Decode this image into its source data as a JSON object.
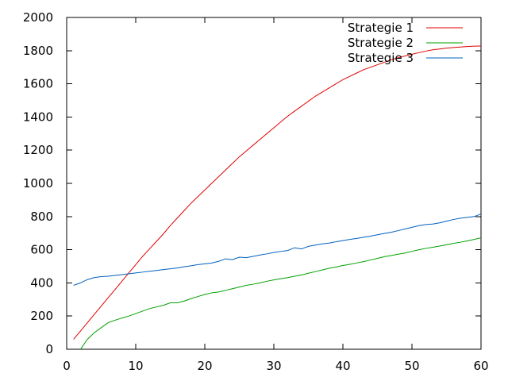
{
  "chart_data": {
    "type": "line",
    "title": "",
    "xlabel": "",
    "ylabel": "",
    "xlim": [
      0,
      60
    ],
    "ylim": [
      0,
      2000
    ],
    "x_ticks": [
      0,
      10,
      20,
      30,
      40,
      50,
      60
    ],
    "y_ticks": [
      0,
      200,
      400,
      600,
      800,
      1000,
      1200,
      1400,
      1600,
      1800,
      2000
    ],
    "grid": false,
    "legend_position": "top-right",
    "series": [
      {
        "name": "Strategie 1",
        "color": "#e00000",
        "points": [
          [
            1,
            60
          ],
          [
            2,
            110
          ],
          [
            3,
            160
          ],
          [
            4,
            210
          ],
          [
            5,
            260
          ],
          [
            6,
            310
          ],
          [
            7,
            360
          ],
          [
            8,
            410
          ],
          [
            9,
            460
          ],
          [
            10,
            510
          ],
          [
            11,
            560
          ],
          [
            12,
            605
          ],
          [
            13,
            650
          ],
          [
            14,
            695
          ],
          [
            15,
            745
          ],
          [
            16,
            790
          ],
          [
            17,
            835
          ],
          [
            18,
            880
          ],
          [
            19,
            920
          ],
          [
            20,
            960
          ],
          [
            21,
            1000
          ],
          [
            22,
            1040
          ],
          [
            23,
            1080
          ],
          [
            24,
            1120
          ],
          [
            25,
            1160
          ],
          [
            26,
            1195
          ],
          [
            27,
            1230
          ],
          [
            28,
            1265
          ],
          [
            29,
            1300
          ],
          [
            30,
            1335
          ],
          [
            31,
            1370
          ],
          [
            32,
            1405
          ],
          [
            33,
            1435
          ],
          [
            34,
            1465
          ],
          [
            35,
            1495
          ],
          [
            36,
            1525
          ],
          [
            37,
            1550
          ],
          [
            38,
            1575
          ],
          [
            39,
            1600
          ],
          [
            40,
            1625
          ],
          [
            41,
            1645
          ],
          [
            42,
            1665
          ],
          [
            43,
            1685
          ],
          [
            44,
            1700
          ],
          [
            45,
            1715
          ],
          [
            46,
            1730
          ],
          [
            47,
            1745
          ],
          [
            48,
            1757
          ],
          [
            49,
            1768
          ],
          [
            50,
            1778
          ],
          [
            51,
            1788
          ],
          [
            52,
            1797
          ],
          [
            53,
            1805
          ],
          [
            54,
            1810
          ],
          [
            55,
            1815
          ],
          [
            56,
            1819
          ],
          [
            57,
            1822
          ],
          [
            58,
            1825
          ],
          [
            59,
            1827
          ],
          [
            60,
            1828
          ]
        ]
      },
      {
        "name": "Strategie 2",
        "color": "#00a000",
        "points": [
          [
            2,
            0
          ],
          [
            3,
            60
          ],
          [
            4,
            100
          ],
          [
            5,
            130
          ],
          [
            6,
            160
          ],
          [
            7,
            175
          ],
          [
            8,
            188
          ],
          [
            9,
            200
          ],
          [
            10,
            215
          ],
          [
            11,
            230
          ],
          [
            12,
            245
          ],
          [
            13,
            255
          ],
          [
            14,
            265
          ],
          [
            15,
            280
          ],
          [
            16,
            280
          ],
          [
            17,
            290
          ],
          [
            18,
            305
          ],
          [
            19,
            318
          ],
          [
            20,
            330
          ],
          [
            21,
            340
          ],
          [
            22,
            345
          ],
          [
            23,
            355
          ],
          [
            24,
            365
          ],
          [
            25,
            375
          ],
          [
            26,
            385
          ],
          [
            27,
            392
          ],
          [
            28,
            400
          ],
          [
            29,
            410
          ],
          [
            30,
            418
          ],
          [
            31,
            425
          ],
          [
            32,
            432
          ],
          [
            33,
            440
          ],
          [
            34,
            448
          ],
          [
            35,
            458
          ],
          [
            36,
            468
          ],
          [
            37,
            478
          ],
          [
            38,
            488
          ],
          [
            39,
            496
          ],
          [
            40,
            505
          ],
          [
            41,
            512
          ],
          [
            42,
            520
          ],
          [
            43,
            528
          ],
          [
            44,
            538
          ],
          [
            45,
            548
          ],
          [
            46,
            558
          ],
          [
            47,
            565
          ],
          [
            48,
            573
          ],
          [
            49,
            580
          ],
          [
            50,
            590
          ],
          [
            51,
            600
          ],
          [
            52,
            608
          ],
          [
            53,
            615
          ],
          [
            54,
            622
          ],
          [
            55,
            630
          ],
          [
            56,
            638
          ],
          [
            57,
            645
          ],
          [
            58,
            653
          ],
          [
            59,
            662
          ],
          [
            60,
            672
          ]
        ]
      },
      {
        "name": "Strategie 3",
        "color": "#0060c0",
        "points": [
          [
            1,
            385
          ],
          [
            2,
            400
          ],
          [
            3,
            420
          ],
          [
            4,
            432
          ],
          [
            5,
            438
          ],
          [
            6,
            440
          ],
          [
            7,
            445
          ],
          [
            8,
            450
          ],
          [
            9,
            455
          ],
          [
            10,
            460
          ],
          [
            11,
            465
          ],
          [
            12,
            470
          ],
          [
            13,
            475
          ],
          [
            14,
            480
          ],
          [
            15,
            485
          ],
          [
            16,
            490
          ],
          [
            17,
            497
          ],
          [
            18,
            503
          ],
          [
            19,
            510
          ],
          [
            20,
            515
          ],
          [
            21,
            520
          ],
          [
            22,
            530
          ],
          [
            23,
            545
          ],
          [
            24,
            540
          ],
          [
            25,
            555
          ],
          [
            26,
            552
          ],
          [
            27,
            560
          ],
          [
            28,
            568
          ],
          [
            29,
            575
          ],
          [
            30,
            583
          ],
          [
            31,
            590
          ],
          [
            32,
            595
          ],
          [
            33,
            612
          ],
          [
            34,
            605
          ],
          [
            35,
            620
          ],
          [
            36,
            628
          ],
          [
            37,
            635
          ],
          [
            38,
            640
          ],
          [
            39,
            648
          ],
          [
            40,
            655
          ],
          [
            41,
            662
          ],
          [
            42,
            668
          ],
          [
            43,
            675
          ],
          [
            44,
            682
          ],
          [
            45,
            690
          ],
          [
            46,
            698
          ],
          [
            47,
            705
          ],
          [
            48,
            715
          ],
          [
            49,
            725
          ],
          [
            50,
            735
          ],
          [
            51,
            745
          ],
          [
            52,
            752
          ],
          [
            53,
            755
          ],
          [
            54,
            762
          ],
          [
            55,
            772
          ],
          [
            56,
            782
          ],
          [
            57,
            790
          ],
          [
            58,
            795
          ],
          [
            59,
            800
          ],
          [
            60,
            815
          ]
        ]
      }
    ]
  }
}
